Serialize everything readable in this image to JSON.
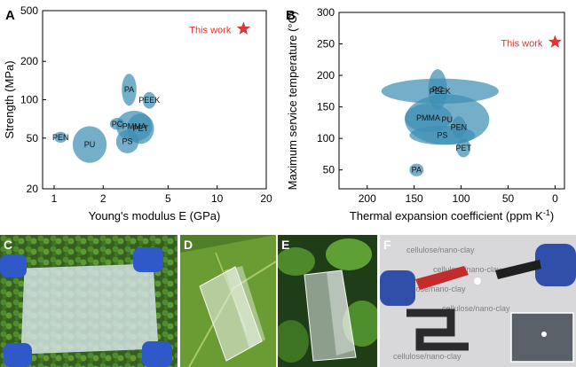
{
  "chart_data": [
    {
      "panel": "A",
      "type": "scatter",
      "xlabel": "Young's modulus E (GPa)",
      "ylabel": "Strength (MPa)",
      "x_scale": "log",
      "y_scale": "log",
      "xlim": [
        0.85,
        20
      ],
      "ylim": [
        20,
        500
      ],
      "x_ticks": [
        1,
        2,
        5,
        10,
        20
      ],
      "y_ticks": [
        20,
        50,
        100,
        200,
        500
      ],
      "ellipse_color": "#3e8fb4",
      "highlight_color": "#e03535",
      "regions": [
        {
          "name": "PEN",
          "x": [
            1.0,
            1.2
          ],
          "y": [
            46,
            56
          ]
        },
        {
          "name": "PU",
          "x": [
            1.3,
            2.1
          ],
          "y": [
            32,
            62
          ]
        },
        {
          "name": "PA",
          "x": [
            2.6,
            3.2
          ],
          "y": [
            90,
            160
          ]
        },
        {
          "name": "PC",
          "x": [
            2.2,
            2.7
          ],
          "y": [
            58,
            72
          ]
        },
        {
          "name": "PMMA",
          "x": [
            2.4,
            4.0
          ],
          "y": [
            47,
            82
          ]
        },
        {
          "name": "PEEK",
          "x": [
            3.5,
            4.2
          ],
          "y": [
            85,
            115
          ]
        },
        {
          "name": "PET",
          "x": [
            2.8,
            4.1
          ],
          "y": [
            45,
            78
          ]
        },
        {
          "name": "PS",
          "x": [
            2.4,
            3.3
          ],
          "y": [
            38,
            58
          ]
        }
      ],
      "this_work": {
        "label": "This work",
        "x": 14.5,
        "y": 360
      }
    },
    {
      "panel": "B",
      "type": "scatter",
      "xlabel": "Thermal expansion coefficient  (ppm K",
      "xlabel_sup": "-1",
      "xlabel_close": ")",
      "ylabel": "Maximum service temperature (°C)",
      "xlim": [
        230,
        -10
      ],
      "ylim": [
        20,
        300
      ],
      "x_ticks": [
        200,
        150,
        100,
        50,
        0
      ],
      "y_ticks": [
        50,
        100,
        150,
        200,
        250,
        300
      ],
      "ellipse_color": "#3e8fb4",
      "highlight_color": "#e03535",
      "regions": [
        {
          "name": "PEEK",
          "x": [
            60,
            185
          ],
          "y": [
            155,
            195
          ]
        },
        {
          "name": "PC",
          "x": [
            115,
            135
          ],
          "y": [
            145,
            210
          ]
        },
        {
          "name": "PU",
          "x": [
            70,
            160
          ],
          "y": [
            90,
            170
          ]
        },
        {
          "name": "PMMA",
          "x": [
            110,
            160
          ],
          "y": [
            110,
            155
          ]
        },
        {
          "name": "PEN",
          "x": [
            95,
            110
          ],
          "y": [
            100,
            135
          ]
        },
        {
          "name": "PS",
          "x": [
            85,
            155
          ],
          "y": [
            90,
            120
          ]
        },
        {
          "name": "PET",
          "x": [
            90,
            105
          ],
          "y": [
            70,
            100
          ]
        },
        {
          "name": "PA",
          "x": [
            140,
            155
          ],
          "y": [
            40,
            60
          ]
        }
      ],
      "this_work": {
        "label": "This work",
        "x": 0,
        "y": 253
      }
    }
  ],
  "photos": [
    {
      "label": "C"
    },
    {
      "label": "D"
    },
    {
      "label": "E"
    },
    {
      "label": "F"
    }
  ],
  "captions": {
    "a": "A",
    "b": "B",
    "f_background_text": "cellulose/nano-clay"
  }
}
